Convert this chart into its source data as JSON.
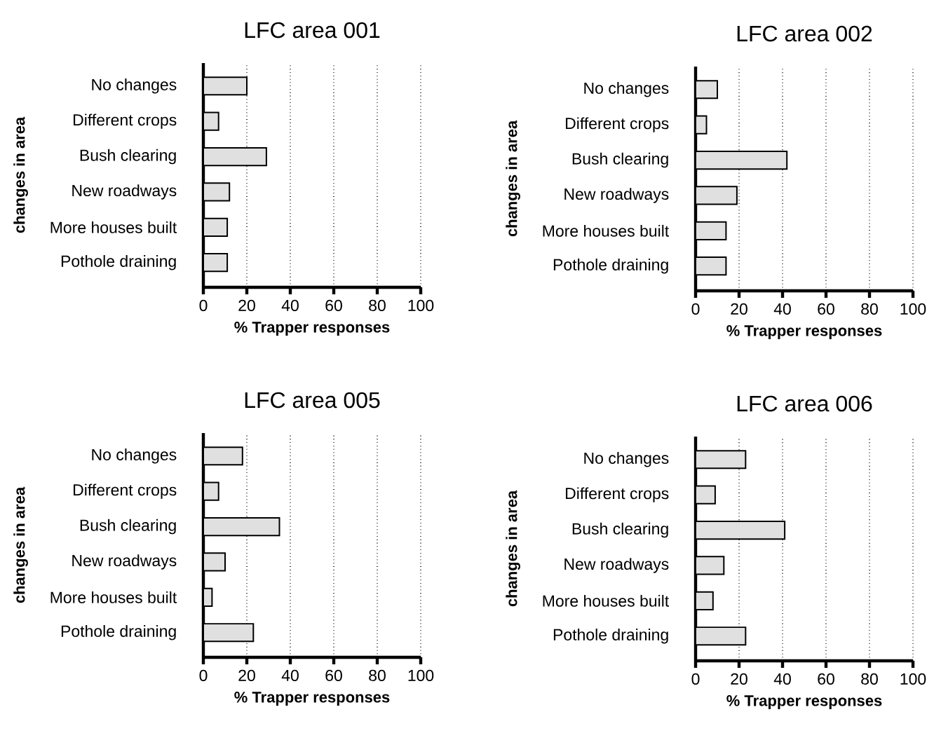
{
  "chart_data": [
    {
      "type": "bar",
      "orientation": "horizontal",
      "title": "LFC area 001",
      "xlabel": "% Trapper responses",
      "ylabel": "changes in area",
      "categories": [
        "No changes",
        "Different crops",
        "Bush clearing",
        "New roadways",
        "More houses built",
        "Pothole draining"
      ],
      "values": [
        20,
        7,
        29,
        12,
        11,
        11
      ],
      "color": "#e0e0e0",
      "xlim": [
        0,
        100
      ],
      "xticks": [
        0,
        20,
        40,
        60,
        80,
        100
      ],
      "grid": "x"
    },
    {
      "type": "bar",
      "orientation": "horizontal",
      "title": "LFC area 002",
      "xlabel": "% Trapper responses",
      "ylabel": "changes in area",
      "categories": [
        "No changes",
        "Different crops",
        "Bush clearing",
        "New roadways",
        "More houses built",
        "Pothole draining"
      ],
      "values": [
        10,
        5,
        42,
        19,
        14,
        14
      ],
      "color": "#e0e0e0",
      "xlim": [
        0,
        100
      ],
      "xticks": [
        0,
        20,
        40,
        60,
        80,
        100
      ],
      "grid": "x"
    },
    {
      "type": "bar",
      "orientation": "horizontal",
      "title": "LFC area 005",
      "xlabel": "% Trapper responses",
      "ylabel": "changes in area",
      "categories": [
        "No changes",
        "Different crops",
        "Bush clearing",
        "New roadways",
        "More houses built",
        "Pothole draining"
      ],
      "values": [
        18,
        7,
        35,
        10,
        4,
        23
      ],
      "color": "#e0e0e0",
      "xlim": [
        0,
        100
      ],
      "xticks": [
        0,
        20,
        40,
        60,
        80,
        100
      ],
      "grid": "x"
    },
    {
      "type": "bar",
      "orientation": "horizontal",
      "title": "LFC area 006",
      "xlabel": "% Trapper responses",
      "ylabel": "changes in area",
      "categories": [
        "No changes",
        "Different crops",
        "Bush clearing",
        "New roadways",
        "More houses built",
        "Pothole draining"
      ],
      "values": [
        23,
        9,
        41,
        13,
        8,
        23
      ],
      "color": "#e0e0e0",
      "xlim": [
        0,
        100
      ],
      "xticks": [
        0,
        20,
        40,
        60,
        80,
        100
      ],
      "grid": "x"
    }
  ]
}
